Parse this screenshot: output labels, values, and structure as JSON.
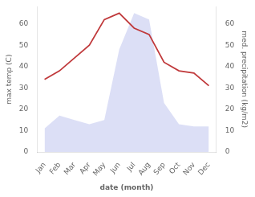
{
  "chart_data": {
    "type": "line",
    "categories": [
      "Jan",
      "Feb",
      "Mar",
      "Apr",
      "May",
      "Jun",
      "Jul",
      "Aug",
      "Sep",
      "Oct",
      "Nov",
      "Dec"
    ],
    "series": [
      {
        "type": "area",
        "color": "#c5caf0",
        "values": [
          11,
          17,
          15,
          13,
          15,
          48,
          65,
          62,
          23,
          13,
          12,
          12
        ]
      },
      {
        "type": "line",
        "color": "#c0393b",
        "values": [
          34,
          38,
          44,
          50,
          62,
          65,
          58,
          55,
          42,
          38,
          37,
          31
        ]
      }
    ],
    "xlabel": "date (month)",
    "ylabel": "max temp (C)",
    "y2label": "med. precipitation (kg/m2)",
    "ylim": [
      0,
      68
    ],
    "yticks": [
      0,
      10,
      20,
      30,
      40,
      50,
      60
    ],
    "y2lim": [
      0,
      68
    ],
    "y2ticks": [
      0,
      10,
      20,
      30,
      40,
      50,
      60
    ],
    "grid": false
  }
}
